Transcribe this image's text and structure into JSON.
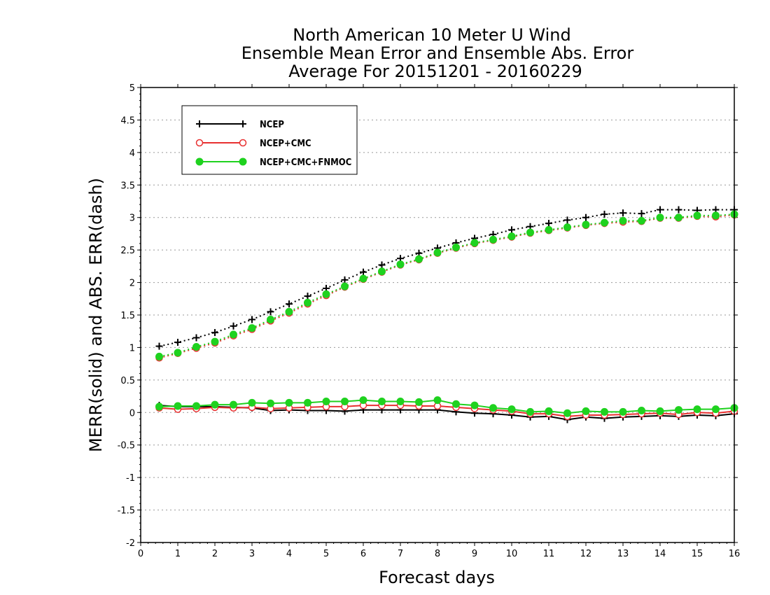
{
  "chart_data": {
    "type": "line",
    "title": [
      "North American 10 Meter U Wind",
      "Ensemble Mean Error and Ensemble Abs. Error",
      "Average For 20151201 - 20160229"
    ],
    "xlabel": "Forecast days",
    "ylabel": "MERR(solid) and ABS. ERR(dash)",
    "xlim": [
      0,
      16
    ],
    "ylim": [
      -2,
      5
    ],
    "xticks": [
      "0",
      "1",
      "2",
      "3",
      "4",
      "5",
      "6",
      "7",
      "8",
      "9",
      "10",
      "11",
      "12",
      "13",
      "14",
      "15",
      "16"
    ],
    "yticks": [
      "5",
      "4.5",
      "4",
      "3.5",
      "3",
      "2.5",
      "2",
      "1.5",
      "1",
      "0.5",
      "0",
      "-0.5",
      "-1",
      "-1.5",
      "-2"
    ],
    "ytick_values": [
      5,
      4.5,
      4,
      3.5,
      3,
      2.5,
      2,
      1.5,
      1,
      0.5,
      0,
      -0.5,
      -1,
      -1.5,
      -2
    ],
    "grid": "horizontal dotted",
    "legend_position": "top-left",
    "x": [
      0.5,
      1,
      1.5,
      2,
      2.5,
      3,
      3.5,
      4,
      4.5,
      5,
      5.5,
      6,
      6.5,
      7,
      7.5,
      8,
      8.5,
      9,
      9.5,
      10,
      10.5,
      11,
      11.5,
      12,
      12.5,
      13,
      13.5,
      14,
      14.5,
      15,
      15.5,
      16
    ],
    "series": [
      {
        "name": "NCEP",
        "color": "#000000",
        "marker": "plus",
        "merr": [
          0.11,
          0.09,
          0.09,
          0.09,
          0.08,
          0.07,
          0.03,
          0.04,
          0.03,
          0.03,
          0.02,
          0.04,
          0.04,
          0.04,
          0.04,
          0.04,
          0.01,
          -0.01,
          -0.02,
          -0.04,
          -0.07,
          -0.06,
          -0.11,
          -0.07,
          -0.09,
          -0.07,
          -0.06,
          -0.05,
          -0.06,
          -0.04,
          -0.05,
          -0.02
        ],
        "abserr": [
          1.02,
          1.08,
          1.15,
          1.23,
          1.33,
          1.43,
          1.55,
          1.67,
          1.79,
          1.91,
          2.04,
          2.16,
          2.27,
          2.37,
          2.45,
          2.53,
          2.61,
          2.68,
          2.74,
          2.81,
          2.86,
          2.91,
          2.96,
          3.0,
          3.05,
          3.07,
          3.06,
          3.12,
          3.12,
          3.11,
          3.12,
          3.12
        ]
      },
      {
        "name": "NCEP+CMC",
        "color": "#e83030",
        "marker": "open-circle",
        "merr": [
          0.07,
          0.05,
          0.06,
          0.08,
          0.07,
          0.08,
          0.06,
          0.07,
          0.08,
          0.09,
          0.09,
          0.11,
          0.11,
          0.11,
          0.1,
          0.1,
          0.08,
          0.06,
          0.04,
          0.02,
          -0.02,
          -0.02,
          -0.06,
          -0.04,
          -0.04,
          -0.03,
          -0.02,
          -0.01,
          -0.03,
          0.0,
          -0.01,
          0.02
        ],
        "abserr": [
          0.84,
          0.91,
          0.99,
          1.07,
          1.18,
          1.28,
          1.41,
          1.53,
          1.67,
          1.8,
          1.93,
          2.05,
          2.16,
          2.27,
          2.35,
          2.45,
          2.53,
          2.6,
          2.65,
          2.7,
          2.76,
          2.8,
          2.84,
          2.88,
          2.91,
          2.93,
          2.94,
          2.99,
          2.99,
          3.02,
          3.01,
          3.04
        ]
      },
      {
        "name": "NCEP+CMC+FNMOC",
        "color": "#1fd21f",
        "marker": "filled-circle",
        "merr": [
          0.09,
          0.1,
          0.1,
          0.12,
          0.12,
          0.15,
          0.14,
          0.15,
          0.15,
          0.17,
          0.17,
          0.19,
          0.17,
          0.17,
          0.16,
          0.19,
          0.13,
          0.11,
          0.07,
          0.05,
          0.01,
          0.02,
          -0.01,
          0.02,
          0.01,
          0.01,
          0.03,
          0.02,
          0.04,
          0.05,
          0.05,
          0.07
        ],
        "abserr": [
          0.86,
          0.92,
          1.01,
          1.09,
          1.2,
          1.3,
          1.43,
          1.55,
          1.69,
          1.82,
          1.94,
          2.06,
          2.17,
          2.28,
          2.36,
          2.46,
          2.54,
          2.61,
          2.66,
          2.71,
          2.77,
          2.81,
          2.85,
          2.89,
          2.92,
          2.95,
          2.95,
          3.0,
          3.0,
          3.03,
          3.03,
          3.05
        ]
      }
    ]
  }
}
